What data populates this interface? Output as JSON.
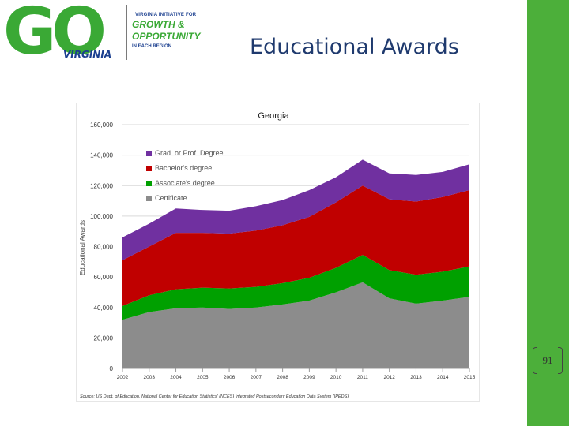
{
  "logo": {
    "go_text": "GO",
    "virginia_text": "VIRGINIA",
    "tagline_top": "VIRGINIA INITIATIVE FOR",
    "tagline_main_1": "GROWTH &",
    "tagline_main_2": "OPPORTUNITY",
    "tagline_bottom": "IN EACH REGION"
  },
  "slide": {
    "title": "Educational Awards",
    "page_number": "91"
  },
  "colors": {
    "grad": "#7030a0",
    "bachelor": "#c00000",
    "associate": "#00a000",
    "certificate": "#8c8c8c",
    "accent_bar": "#4caf3a"
  },
  "chart_data": {
    "type": "area",
    "stacked": true,
    "title": "Georgia",
    "ylabel": "Educational Awards",
    "x": [
      "2002",
      "2003",
      "2004",
      "2005",
      "2006",
      "2007",
      "2008",
      "2009",
      "2010",
      "2011",
      "2012",
      "2013",
      "2014",
      "2015"
    ],
    "ylim": [
      0,
      160000
    ],
    "yticks": [
      "0",
      "20,000",
      "40,000",
      "60,000",
      "80,000",
      "100,000",
      "120,000",
      "140,000",
      "160,000"
    ],
    "grid": true,
    "legend_position": "top-left",
    "series": [
      {
        "name": "Certificate",
        "color": "#8c8c8c",
        "values": [
          32000,
          37000,
          39500,
          40000,
          39000,
          40000,
          42000,
          44500,
          50000,
          56500,
          46000,
          42500,
          44500,
          47000
        ]
      },
      {
        "name": "Associate's degree",
        "color": "#00a000",
        "values": [
          9000,
          11000,
          12500,
          13000,
          13500,
          13500,
          14000,
          15000,
          16000,
          18000,
          18500,
          19000,
          19000,
          20000
        ]
      },
      {
        "name": "Bachelor's degree",
        "color": "#c00000",
        "values": [
          30000,
          32000,
          37000,
          36000,
          36000,
          37000,
          38000,
          40000,
          43000,
          45500,
          46500,
          48000,
          49000,
          50000
        ]
      },
      {
        "name": "Grad. or Prof. Degree",
        "color": "#7030a0",
        "values": [
          15000,
          15000,
          16000,
          15000,
          15000,
          16000,
          16500,
          17500,
          16500,
          17000,
          17000,
          17500,
          16500,
          17000
        ]
      }
    ],
    "source": "Source: US Dept. of Education, National Center for Education Statistics' (NCES) Integrated Postsecondary Education Data System (IPEDS)"
  }
}
